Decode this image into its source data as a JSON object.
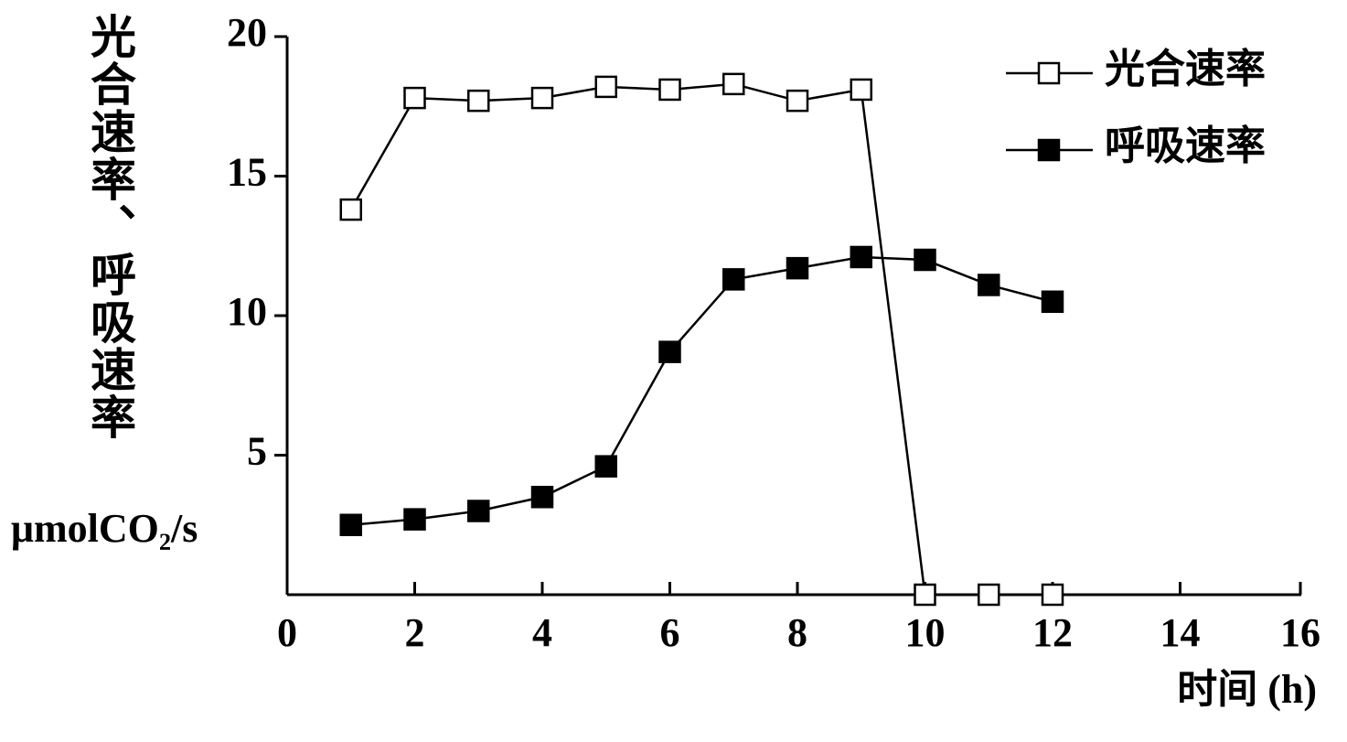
{
  "chart_data": {
    "type": "line",
    "y_label": "光合速率、呼吸速率",
    "y_unit": "μmolCO₂/s",
    "x_label": "时间 (h)",
    "x": [
      1,
      2,
      3,
      4,
      5,
      6,
      7,
      8,
      9,
      10,
      11,
      12
    ],
    "series": [
      {
        "name": "光合速率",
        "color": "#000000",
        "marker": "open-square",
        "values": [
          13.8,
          17.8,
          17.7,
          17.8,
          18.2,
          18.1,
          18.3,
          17.7,
          18.1,
          0,
          0,
          0
        ]
      },
      {
        "name": "呼吸速率",
        "color": "#000000",
        "marker": "filled-square",
        "values": [
          2.5,
          2.7,
          3.0,
          3.5,
          4.6,
          8.7,
          11.3,
          11.7,
          12.1,
          12.0,
          11.1,
          10.5
        ]
      }
    ],
    "xlim": [
      0,
      16
    ],
    "xticks": [
      0,
      2,
      4,
      6,
      8,
      10,
      12,
      14,
      16
    ],
    "ylim": [
      0,
      20
    ],
    "yticks": [
      5,
      10,
      15,
      20
    ],
    "grid": false,
    "legend": "top-right"
  }
}
